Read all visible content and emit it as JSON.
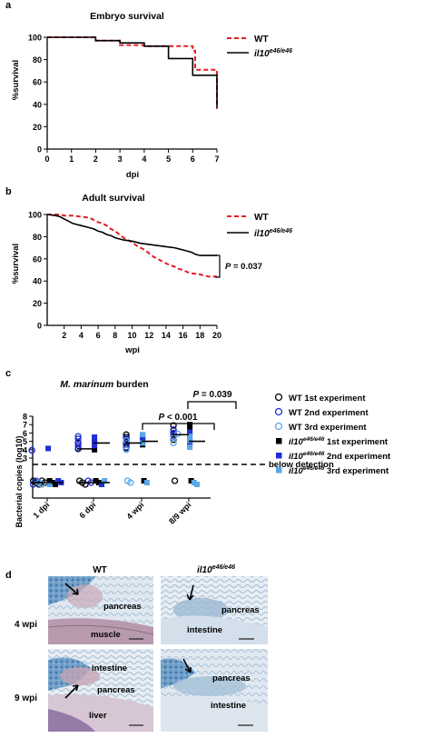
{
  "panel_a": {
    "letter": "a",
    "title": "Embryo survival",
    "ylabel": "%survival",
    "xlabel": "dpi",
    "legend": [
      {
        "label_main": "WT",
        "label_sup": "",
        "color": "#e41e26",
        "dash": true
      },
      {
        "label_main": "il10",
        "label_sup": "e46/e46",
        "color": "#000000",
        "dash": false
      }
    ]
  },
  "panel_b": {
    "letter": "b",
    "title": "Adult survival",
    "ylabel": "%survival",
    "xlabel": "wpi",
    "pvalue": "= 0.037",
    "p_letter": "P",
    "legend": [
      {
        "label_main": "WT",
        "label_sup": "",
        "color": "#e41e26",
        "dash": true
      },
      {
        "label_main": "il10",
        "label_sup": "e46/e46",
        "color": "#000000",
        "dash": false
      }
    ]
  },
  "panel_c": {
    "letter": "c",
    "title_italic": "M. marinum",
    "title_rest": " burden",
    "ylabel": "Bacterial copies (log10)",
    "below_detection": "below detection",
    "p1_letter": "P",
    "p1": "< 0.001",
    "p2_letter": "P",
    "p2": "= 0.039",
    "legend": [
      {
        "prefix": "WT",
        "sup": "",
        "suffix": " 1st experiment",
        "marker": "open-circle",
        "color": "#000000"
      },
      {
        "prefix": "WT",
        "sup": "",
        "suffix": " 2nd experiment",
        "marker": "open-circle",
        "color": "#1f2fd6"
      },
      {
        "prefix": "WT",
        "sup": "",
        "suffix": " 3rd experiment",
        "marker": "open-circle",
        "color": "#5aa6e6"
      },
      {
        "prefix": "il10",
        "sup": "e46/e46",
        "suffix": "  1st experiment",
        "marker": "square",
        "color": "#000000"
      },
      {
        "prefix": "il10",
        "sup": "e46/e46",
        "suffix": "  2nd experiment",
        "marker": "square",
        "color": "#1f2fd6"
      },
      {
        "prefix": "il10",
        "sup": "e46/e46",
        "suffix": "  3rd experiment",
        "marker": "square",
        "color": "#5aa6e6"
      }
    ]
  },
  "panel_d": {
    "letter": "d",
    "col_wt": "WT",
    "col_mut_main": "il10",
    "col_mut_sup": "e46/e46",
    "row1": "4 wpi",
    "row2": "9 wpi",
    "labels": {
      "tl_pancreas": "pancreas",
      "tl_muscle": "muscle",
      "tr_pancreas": "pancreas",
      "tr_intestine": "intestine",
      "bl_intestine": "intestine",
      "bl_pancreas": "pancreas",
      "bl_liver": "liver",
      "br_pancreas": "pancreas",
      "br_intestine": "intestine"
    }
  },
  "chart_data": [
    {
      "type": "line",
      "title": "Embryo survival",
      "xlabel": "dpi",
      "ylabel": "%survival",
      "xlim": [
        0,
        7
      ],
      "ylim": [
        0,
        100
      ],
      "xticks": [
        0,
        1,
        2,
        3,
        4,
        5,
        6,
        7
      ],
      "yticks": [
        0,
        20,
        40,
        60,
        80,
        100
      ],
      "series": [
        {
          "name": "WT",
          "color": "#e41e26",
          "step": [
            [
              0,
              100
            ],
            [
              2,
              100
            ],
            [
              2,
              97
            ],
            [
              3,
              97
            ],
            [
              3,
              93
            ],
            [
              4,
              93
            ],
            [
              4,
              92
            ],
            [
              6,
              92
            ],
            [
              6,
              88
            ],
            [
              6.1,
              88
            ],
            [
              6.1,
              71
            ],
            [
              7,
              71
            ],
            [
              7,
              36
            ]
          ]
        },
        {
          "name": "il10e46/e46",
          "color": "#000000",
          "step": [
            [
              0,
              100
            ],
            [
              2,
              100
            ],
            [
              2,
              97
            ],
            [
              3,
              97
            ],
            [
              3,
              95
            ],
            [
              4,
              95
            ],
            [
              4,
              92
            ],
            [
              5,
              92
            ],
            [
              5,
              81
            ],
            [
              6,
              81
            ],
            [
              6,
              66
            ],
            [
              7,
              66
            ],
            [
              7,
              37
            ]
          ]
        }
      ]
    },
    {
      "type": "line",
      "title": "Adult survival",
      "xlabel": "wpi",
      "ylabel": "%survival",
      "xlim": [
        0,
        20
      ],
      "ylim": [
        0,
        100
      ],
      "xticks": [
        2,
        4,
        6,
        8,
        10,
        12,
        14,
        16,
        18,
        20
      ],
      "yticks": [
        0,
        20,
        40,
        60,
        80,
        100
      ],
      "annotation": "P = 0.037",
      "series": [
        {
          "name": "WT",
          "color": "#e41e26",
          "step": [
            [
              0,
              100
            ],
            [
              1.5,
              100
            ],
            [
              2,
              99
            ],
            [
              3,
              99
            ],
            [
              4,
              98
            ],
            [
              5,
              97
            ],
            [
              5.5,
              95
            ],
            [
              6,
              93
            ],
            [
              6.5,
              92
            ],
            [
              7,
              90
            ],
            [
              7.5,
              87
            ],
            [
              8,
              85
            ],
            [
              8.5,
              82
            ],
            [
              9,
              79
            ],
            [
              9.5,
              77
            ],
            [
              10,
              75
            ],
            [
              10.5,
              72
            ],
            [
              11,
              70
            ],
            [
              11.5,
              68
            ],
            [
              12,
              65
            ],
            [
              12.5,
              62
            ],
            [
              13,
              60
            ],
            [
              13.5,
              58
            ],
            [
              14,
              56
            ],
            [
              14.5,
              54
            ],
            [
              15,
              53
            ],
            [
              15.5,
              51
            ],
            [
              16,
              50
            ],
            [
              16.5,
              48
            ],
            [
              17,
              47
            ],
            [
              18,
              46
            ],
            [
              18.5,
              45
            ],
            [
              19,
              44
            ],
            [
              20,
              44
            ]
          ]
        },
        {
          "name": "il10e46/e46",
          "color": "#000000",
          "step": [
            [
              0,
              100
            ],
            [
              1,
              99
            ],
            [
              1.5,
              98
            ],
            [
              2,
              96
            ],
            [
              2.5,
              94
            ],
            [
              3,
              92
            ],
            [
              3.5,
              91
            ],
            [
              4,
              90
            ],
            [
              5,
              88
            ],
            [
              5.5,
              87
            ],
            [
              6,
              85
            ],
            [
              6.5,
              84
            ],
            [
              7,
              82
            ],
            [
              7.5,
              81
            ],
            [
              8,
              79
            ],
            [
              9,
              77
            ],
            [
              10,
              76
            ],
            [
              11,
              74
            ],
            [
              12,
              73
            ],
            [
              13,
              72
            ],
            [
              14,
              71
            ],
            [
              15,
              70
            ],
            [
              15.5,
              69
            ],
            [
              16,
              68
            ],
            [
              17,
              66
            ],
            [
              17.5,
              64
            ],
            [
              18,
              63
            ],
            [
              20,
              63
            ]
          ]
        }
      ]
    },
    {
      "type": "scatter",
      "title": "M. marinum burden",
      "ylabel": "Bacterial copies (log10)",
      "categories": [
        "1 dpi",
        "6 dpi",
        "4 wpi",
        "8/9 wpi"
      ],
      "ylim": [
        3,
        8
      ],
      "yticks": [
        3,
        4,
        5,
        6,
        7,
        8
      ],
      "threshold_label": "below detection",
      "medians": {
        "WT": [
          null,
          4.1,
          4.8,
          5.8
        ],
        "il10e46/e46": [
          null,
          4.8,
          5.0,
          5.0
        ]
      },
      "series": [
        {
          "name": "WT 1st experiment",
          "marker": "open-circle",
          "color": "#000000",
          "points": [
            [
              "1 dpi",
              "bd"
            ],
            [
              "1 dpi",
              "bd"
            ],
            [
              "1 dpi",
              "bd"
            ],
            [
              "1 dpi",
              "bd"
            ],
            [
              "1 dpi",
              "bd"
            ],
            [
              "6 dpi",
              "bd"
            ],
            [
              "6 dpi",
              "bd"
            ],
            [
              "6 dpi",
              "bd"
            ],
            [
              "6 dpi",
              4.1
            ],
            [
              "6 dpi",
              4.8
            ],
            [
              "4 wpi",
              4.2
            ],
            [
              "4 wpi",
              4.6
            ],
            [
              "4 wpi",
              4.9
            ],
            [
              "4 wpi",
              5.2
            ],
            [
              "4 wpi",
              5.5
            ],
            [
              "4 wpi",
              5.8
            ],
            [
              "8/9 wpi",
              5.2
            ],
            [
              "8/9 wpi",
              5.9
            ],
            [
              "8/9 wpi",
              6.3
            ],
            [
              "8/9 wpi",
              6.9
            ],
            [
              "8/9 wpi",
              "bd"
            ]
          ]
        },
        {
          "name": "WT 2nd experiment",
          "marker": "open-circle",
          "color": "#1f2fd6",
          "points": [
            [
              "1 dpi",
              3.95
            ],
            [
              "1 dpi",
              3.9
            ],
            [
              "1 dpi",
              "bd"
            ],
            [
              "1 dpi",
              "bd"
            ],
            [
              "6 dpi",
              4.2
            ],
            [
              "6 dpi",
              4.5
            ],
            [
              "6 dpi",
              4.9
            ],
            [
              "6 dpi",
              5.3
            ],
            [
              "6 dpi",
              5.6
            ],
            [
              "6 dpi",
              "bd"
            ],
            [
              "6 dpi",
              "bd"
            ],
            [
              "4 wpi",
              4.3
            ],
            [
              "4 wpi",
              5.0
            ],
            [
              "4 wpi",
              5.3
            ],
            [
              "8/9 wpi",
              5.6
            ],
            [
              "8/9 wpi",
              6.0
            ],
            [
              "8/9 wpi",
              6.4
            ]
          ]
        },
        {
          "name": "WT 3rd experiment",
          "marker": "open-circle",
          "color": "#5aa6e6",
          "points": [
            [
              "1 dpi",
              "bd"
            ],
            [
              "1 dpi",
              "bd"
            ],
            [
              "4 wpi",
              4.0
            ],
            [
              "4 wpi",
              5.1
            ],
            [
              "4 wpi",
              "bd"
            ],
            [
              "4 wpi",
              "bd"
            ],
            [
              "8/9 wpi",
              4.8
            ],
            [
              "8/9 wpi",
              5.4
            ],
            [
              "8/9 wpi",
              5.9
            ]
          ]
        },
        {
          "name": "il10e46/e46 1st experiment",
          "marker": "square",
          "color": "#000000",
          "points": [
            [
              "1 dpi",
              "bd"
            ],
            [
              "1 dpi",
              "bd"
            ],
            [
              "1 dpi",
              "bd"
            ],
            [
              "6 dpi",
              4.0
            ],
            [
              "6 dpi",
              4.9
            ],
            [
              "6 dpi",
              "bd"
            ],
            [
              "6 dpi",
              "bd"
            ],
            [
              "4 wpi",
              4.6
            ],
            [
              "4 wpi",
              5.2
            ],
            [
              "4 wpi",
              5.5
            ],
            [
              "4 wpi",
              "bd"
            ],
            [
              "8/9 wpi",
              4.9
            ],
            [
              "8/9 wpi",
              5.8
            ],
            [
              "8/9 wpi",
              6.6
            ],
            [
              "8/9 wpi",
              7.0
            ],
            [
              "8/9 wpi",
              "bd"
            ]
          ]
        },
        {
          "name": "il10e46/e46 2nd experiment",
          "marker": "square",
          "color": "#1f2fd6",
          "points": [
            [
              "1 dpi",
              4.15
            ],
            [
              "1 dpi",
              "bd"
            ],
            [
              "1 dpi",
              "bd"
            ],
            [
              "6 dpi",
              4.5
            ],
            [
              "6 dpi",
              5.0
            ],
            [
              "6 dpi",
              5.5
            ],
            [
              "6 dpi",
              "bd"
            ],
            [
              "4 wpi",
              4.9
            ],
            [
              "4 wpi",
              5.3
            ],
            [
              "4 wpi",
              5.7
            ],
            [
              "8/9 wpi",
              4.6
            ],
            [
              "8/9 wpi",
              5.3
            ],
            [
              "8/9 wpi",
              6.1
            ]
          ]
        },
        {
          "name": "il10e46/e46 3rd experiment",
          "marker": "square",
          "color": "#5aa6e6",
          "points": [
            [
              "1 dpi",
              "bd"
            ],
            [
              "6 dpi",
              "bd"
            ],
            [
              "4 wpi",
              4.8
            ],
            [
              "4 wpi",
              5.8
            ],
            [
              "4 wpi",
              "bd"
            ],
            [
              "8/9 wpi",
              4.3
            ],
            [
              "8/9 wpi",
              5.1
            ],
            [
              "8/9 wpi",
              5.6
            ],
            [
              "8/9 wpi",
              "bd"
            ],
            [
              "8/9 wpi",
              "bd"
            ]
          ]
        }
      ]
    }
  ]
}
